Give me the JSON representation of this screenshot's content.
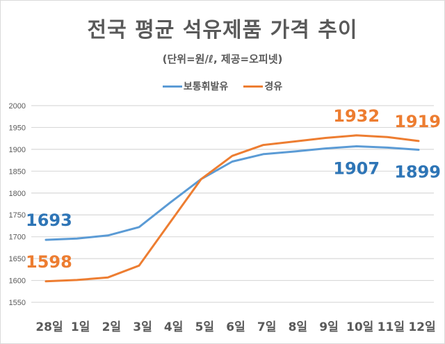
{
  "chart_data": {
    "type": "line",
    "title": "전국 평균 석유제품 가격 추이",
    "subtitle": "(단위=원/ℓ, 제공=오피넷)",
    "xlabel": "",
    "ylabel": "",
    "categories": [
      "28일",
      "1일",
      "2일",
      "3일",
      "4일",
      "5일",
      "6일",
      "7일",
      "8일",
      "9일",
      "10일",
      "11일",
      "12일"
    ],
    "ylim": [
      1550,
      2000
    ],
    "yticks": [
      1550,
      1600,
      1650,
      1700,
      1750,
      1800,
      1850,
      1900,
      1950,
      2000
    ],
    "grid": true,
    "legend_position": "top-center",
    "series": [
      {
        "name": "보통휘발유",
        "color": "#5b9bd5",
        "label_color": "#2e75b6",
        "values": [
          1693,
          1696,
          1703,
          1722,
          1778,
          1832,
          1872,
          1889,
          1895,
          1902,
          1907,
          1904,
          1899
        ]
      },
      {
        "name": "경유",
        "color": "#ed7d31",
        "label_color": "#ed7d31",
        "values": [
          1598,
          1601,
          1607,
          1634,
          1733,
          1832,
          1885,
          1910,
          1918,
          1926,
          1932,
          1928,
          1919
        ]
      }
    ],
    "annotations": [
      {
        "series": 0,
        "index": 0,
        "text": "1693",
        "position": "above"
      },
      {
        "series": 1,
        "index": 0,
        "text": "1598",
        "position": "above"
      },
      {
        "series": 1,
        "index": 10,
        "text": "1932",
        "position": "above"
      },
      {
        "series": 0,
        "index": 10,
        "text": "1907",
        "position": "below"
      },
      {
        "series": 1,
        "index": 12,
        "text": "1919",
        "position": "above"
      },
      {
        "series": 0,
        "index": 12,
        "text": "1899",
        "position": "below"
      }
    ]
  }
}
